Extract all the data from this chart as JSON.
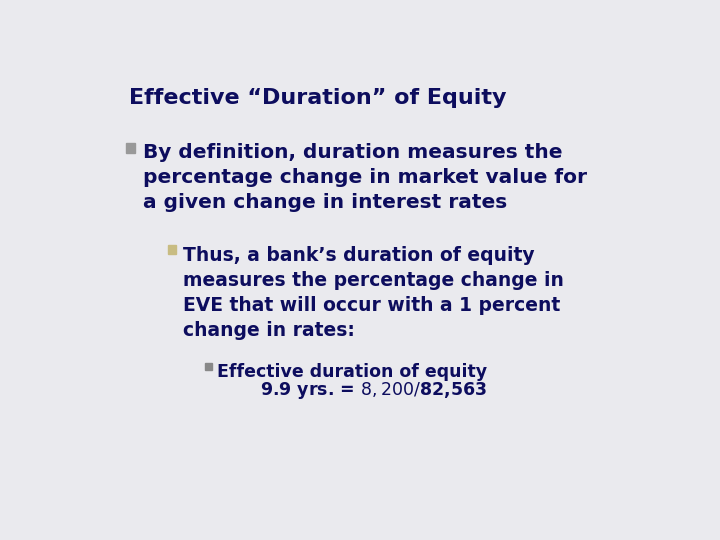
{
  "title": "Effective “Duration” of Equity",
  "title_color": "#0d0d5e",
  "title_fontsize": 16,
  "background_color": "#eaeaee",
  "text_color": "#0d0d5e",
  "bullet1_color": "#999999",
  "bullet2_color": "#c8bc82",
  "bullet3_color": "#888888",
  "bullet1_text": "By definition, duration measures the\npercentage change in market value for\na given change in interest rates",
  "bullet2_text": "Thus, a bank’s duration of equity\nmeasures the percentage change in\nEVE that will occur with a 1 percent\nchange in rates:",
  "bullet3_text_line1": "Effective duration of equity",
  "bullet3_text_line2": "9.9 yrs. = $8,200 / $82,563",
  "b1_fontsize": 14.5,
  "b2_fontsize": 13.5,
  "b3_fontsize": 12.5,
  "title_font": "Times New Roman",
  "body_font": "Arial"
}
